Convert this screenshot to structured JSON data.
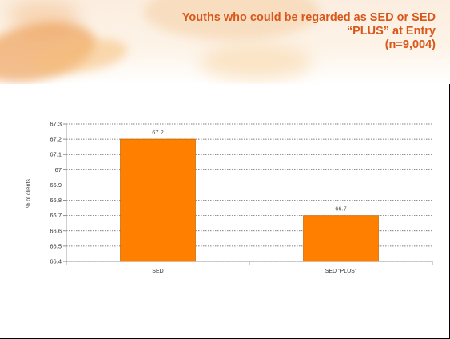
{
  "title_lines": [
    "Youths who could be regarded as SED  or  SED",
    "“PLUS” at Entry",
    "(n=9,004)"
  ],
  "colors": {
    "bar": "#ff8000",
    "bar_border": "#cc6600",
    "title": "#d9571a"
  },
  "chart_data": {
    "type": "bar",
    "categories": [
      "SED",
      "SED \"PLUS\""
    ],
    "values": [
      67.2,
      66.7
    ],
    "data_labels": [
      "67.2",
      "66.7"
    ],
    "ylabel": "% of clients",
    "ylim": [
      66.4,
      67.3
    ],
    "yticks": [
      67.3,
      67.2,
      67.1,
      67,
      66.9,
      66.8,
      66.7,
      66.6,
      66.5,
      66.4
    ],
    "ytick_labels": [
      "67.3",
      "67.2",
      "67.1",
      "67",
      "66.9",
      "66.8",
      "66.7",
      "66.6",
      "66.5",
      "66.4"
    ],
    "grid": true
  }
}
